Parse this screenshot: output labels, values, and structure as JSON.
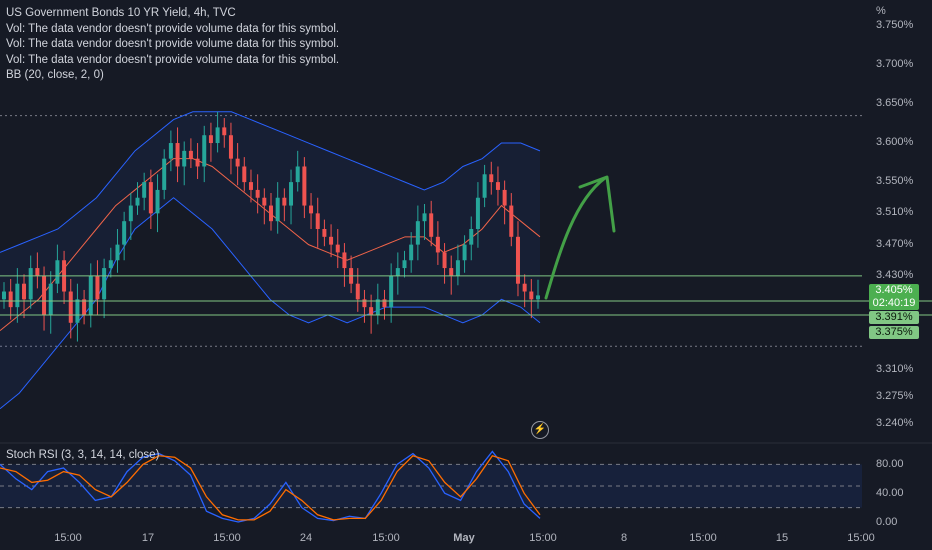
{
  "header": {
    "title": "US Government Bonds 10 YR Yield, 4h, TVC",
    "vol_notes": [
      "Vol: The data vendor doesn't provide volume data for this symbol.",
      "Vol: The data vendor doesn't provide volume data for this symbol.",
      "Vol: The data vendor doesn't provide volume data for this symbol."
    ],
    "bb_label": "BB (20, close, 2, 0)"
  },
  "price_axis": {
    "unit": "%",
    "ticks": [
      "3.750%",
      "3.700%",
      "3.650%",
      "3.600%",
      "3.550%",
      "3.510%",
      "3.470%",
      "3.430%",
      "3.310%",
      "3.275%",
      "3.240%"
    ]
  },
  "price_badges": {
    "last_price": "3.405%",
    "countdown": "02:40:19",
    "level_1": "3.391%",
    "level_2": "3.375%"
  },
  "stoch_panel": {
    "label": "Stoch RSI (3, 3, 14, 14, close)",
    "ticks": [
      "80.00",
      "40.00",
      "0.00"
    ]
  },
  "time_axis": {
    "ticks": [
      "15:00",
      "17",
      "15:00",
      "24",
      "15:00",
      "May",
      "15:00",
      "8",
      "15:00",
      "15",
      "15:00"
    ]
  },
  "colors": {
    "background": "#161a25",
    "bull": "#26a69a",
    "bear": "#ef5350",
    "bb_band": "#2962ff",
    "bb_basis": "#f06449",
    "stoch_k": "#2962ff",
    "stoch_d": "#ff6d00",
    "level_line": "#81c784",
    "arrow": "#43a047",
    "badge_green": "#4caf50"
  },
  "chart_data": [
    {
      "type": "candlestick",
      "title": "US Government Bonds 10 YR Yield, 4h, TVC",
      "ylabel": "%",
      "ylim": [
        3.22,
        3.76
      ],
      "x_ticks": [
        "15:00",
        "17",
        "15:00",
        "24",
        "15:00",
        "May",
        "15:00",
        "8",
        "15:00",
        "15",
        "15:00"
      ],
      "last_price": 3.405,
      "horizontal_levels": [
        3.43,
        3.402,
        3.391,
        3.34
      ],
      "dashed_level": 3.635,
      "close": [
        3.41,
        3.39,
        3.42,
        3.4,
        3.44,
        3.43,
        3.38,
        3.42,
        3.45,
        3.41,
        3.37,
        3.4,
        3.38,
        3.43,
        3.4,
        3.44,
        3.45,
        3.47,
        3.5,
        3.52,
        3.53,
        3.55,
        3.51,
        3.54,
        3.58,
        3.6,
        3.57,
        3.59,
        3.58,
        3.57,
        3.61,
        3.6,
        3.62,
        3.61,
        3.58,
        3.57,
        3.55,
        3.54,
        3.53,
        3.52,
        3.5,
        3.53,
        3.52,
        3.55,
        3.57,
        3.52,
        3.51,
        3.49,
        3.48,
        3.47,
        3.46,
        3.44,
        3.42,
        3.4,
        3.39,
        3.38,
        3.4,
        3.39,
        3.43,
        3.44,
        3.45,
        3.47,
        3.5,
        3.51,
        3.48,
        3.46,
        3.44,
        3.43,
        3.45,
        3.47,
        3.49,
        3.53,
        3.56,
        3.55,
        3.54,
        3.52,
        3.48,
        3.42,
        3.41,
        3.4,
        3.405
      ],
      "bb_upper": [
        3.46,
        3.47,
        3.48,
        3.49,
        3.51,
        3.53,
        3.56,
        3.59,
        3.61,
        3.63,
        3.64,
        3.64,
        3.64,
        3.63,
        3.62,
        3.61,
        3.6,
        3.59,
        3.58,
        3.57,
        3.56,
        3.55,
        3.54,
        3.55,
        3.57,
        3.58,
        3.6,
        3.6,
        3.59
      ],
      "bb_basis": [
        3.36,
        3.38,
        3.4,
        3.43,
        3.46,
        3.49,
        3.52,
        3.54,
        3.56,
        3.58,
        3.58,
        3.57,
        3.55,
        3.53,
        3.51,
        3.49,
        3.47,
        3.46,
        3.45,
        3.46,
        3.47,
        3.48,
        3.48,
        3.46,
        3.47,
        3.49,
        3.52,
        3.5,
        3.48
      ],
      "bb_lower": [
        3.26,
        3.28,
        3.31,
        3.34,
        3.37,
        3.4,
        3.45,
        3.49,
        3.51,
        3.53,
        3.51,
        3.49,
        3.46,
        3.43,
        3.4,
        3.38,
        3.37,
        3.38,
        3.37,
        3.38,
        3.39,
        3.39,
        3.39,
        3.38,
        3.37,
        3.38,
        3.4,
        3.39,
        3.37
      ]
    },
    {
      "type": "line",
      "title": "Stoch RSI (3, 3, 14, 14, close)",
      "ylim": [
        0,
        100
      ],
      "y_ticks": [
        80,
        40,
        0
      ],
      "bands": [
        80,
        50,
        20
      ],
      "series": [
        {
          "name": "K",
          "values": [
            80,
            60,
            45,
            70,
            75,
            55,
            30,
            35,
            70,
            90,
            95,
            85,
            65,
            15,
            5,
            0,
            5,
            25,
            55,
            20,
            5,
            2,
            8,
            5,
            40,
            80,
            95,
            75,
            40,
            30,
            70,
            98,
            70,
            25,
            5
          ]
        },
        {
          "name": "D",
          "values": [
            75,
            70,
            55,
            58,
            70,
            65,
            45,
            35,
            55,
            80,
            92,
            90,
            75,
            35,
            10,
            3,
            3,
            15,
            45,
            30,
            10,
            3,
            5,
            5,
            30,
            70,
            92,
            85,
            55,
            35,
            60,
            92,
            85,
            40,
            10
          ]
        }
      ]
    }
  ]
}
